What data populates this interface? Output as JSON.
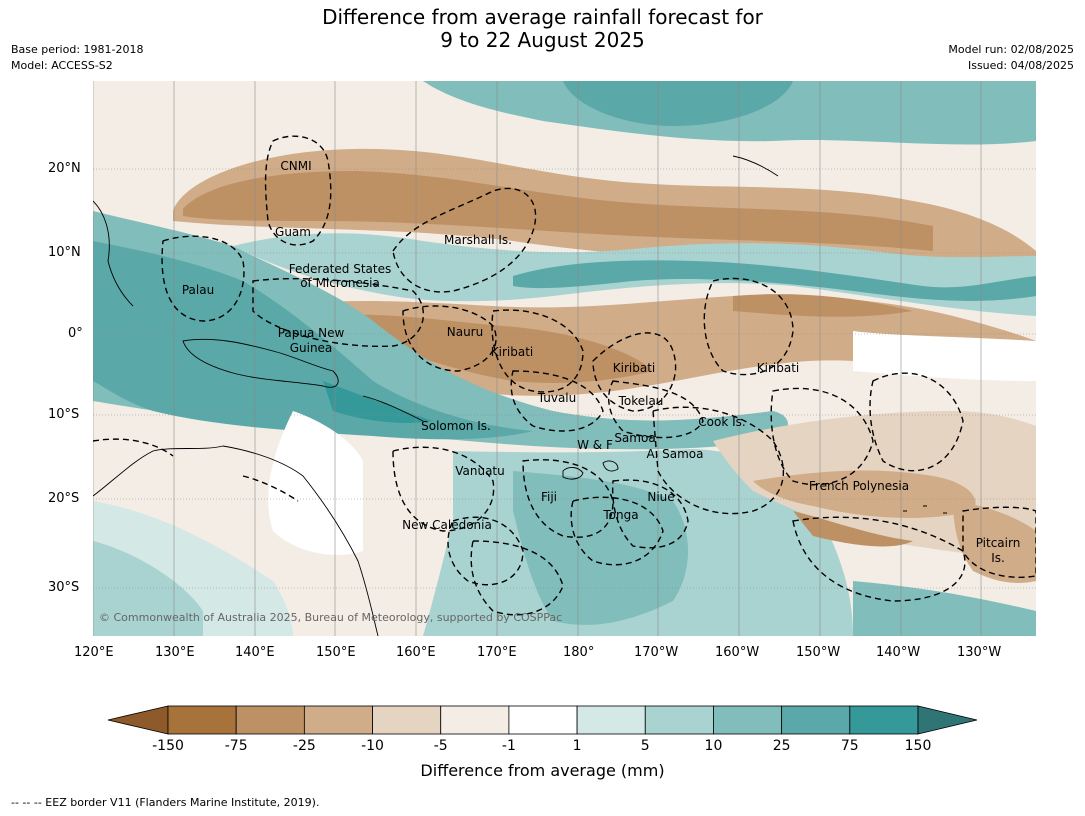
{
  "title": {
    "line1": "Difference from average rainfall forecast for",
    "line2": "9 to 22 August 2025"
  },
  "meta": {
    "base_period": "Base period: 1981-2018",
    "model": "Model: ACCESS-S2",
    "model_run": "Model run: 02/08/2025",
    "issued": "Issued: 04/08/2025"
  },
  "map": {
    "copyright": "© Commonwealth of Australia 2025, Bureau of Meteorology, supported by COSPPac",
    "lon_labels": [
      "120°E",
      "130°E",
      "140°E",
      "150°E",
      "160°E",
      "170°E",
      "180°",
      "170°W",
      "160°W",
      "150°W",
      "140°W",
      "130°W"
    ],
    "lat_labels": [
      "20°N",
      "10°N",
      "0°",
      "10°S",
      "20°S",
      "30°S"
    ],
    "regions": [
      {
        "name": "CNMI"
      },
      {
        "name": "Guam"
      },
      {
        "name": "Marshall Is."
      },
      {
        "name": "Federated States"
      },
      {
        "name": "of Micronesia"
      },
      {
        "name": "Palau"
      },
      {
        "name": "Papua New"
      },
      {
        "name": "Guinea"
      },
      {
        "name": "Nauru"
      },
      {
        "name": "Kiribati"
      },
      {
        "name": "Kiribati"
      },
      {
        "name": "Kiribati"
      },
      {
        "name": "Tuvalu"
      },
      {
        "name": "Tokelau"
      },
      {
        "name": "Cook Is."
      },
      {
        "name": "Solomon Is."
      },
      {
        "name": "W & F"
      },
      {
        "name": "Samoa"
      },
      {
        "name": "A. Samoa"
      },
      {
        "name": "Vanuatu"
      },
      {
        "name": "Fiji"
      },
      {
        "name": "Niue"
      },
      {
        "name": "Tonga"
      },
      {
        "name": "New Caledonia"
      },
      {
        "name": "French Polynesia"
      },
      {
        "name": "Pitcairn"
      },
      {
        "name": "Is."
      }
    ]
  },
  "colorbar": {
    "title": "Difference from average (mm)",
    "tick_labels": [
      "-150",
      "-75",
      "-25",
      "-10",
      "-5",
      "-1",
      "1",
      "5",
      "10",
      "25",
      "75",
      "150"
    ],
    "colors": [
      "#a8733a",
      "#be9164",
      "#d1ac88",
      "#e6d4c2",
      "#f3ede6",
      "#ffffff",
      "#d4e8e6",
      "#a9d3d1",
      "#80bdbb",
      "#5aa8a7",
      "#35999a"
    ],
    "extend_low_color": "#8e5a2a",
    "extend_high_color": "#2f7575"
  },
  "footer": "--  --  -- EEZ border V11 (Flanders Marine Institute, 2019)."
}
